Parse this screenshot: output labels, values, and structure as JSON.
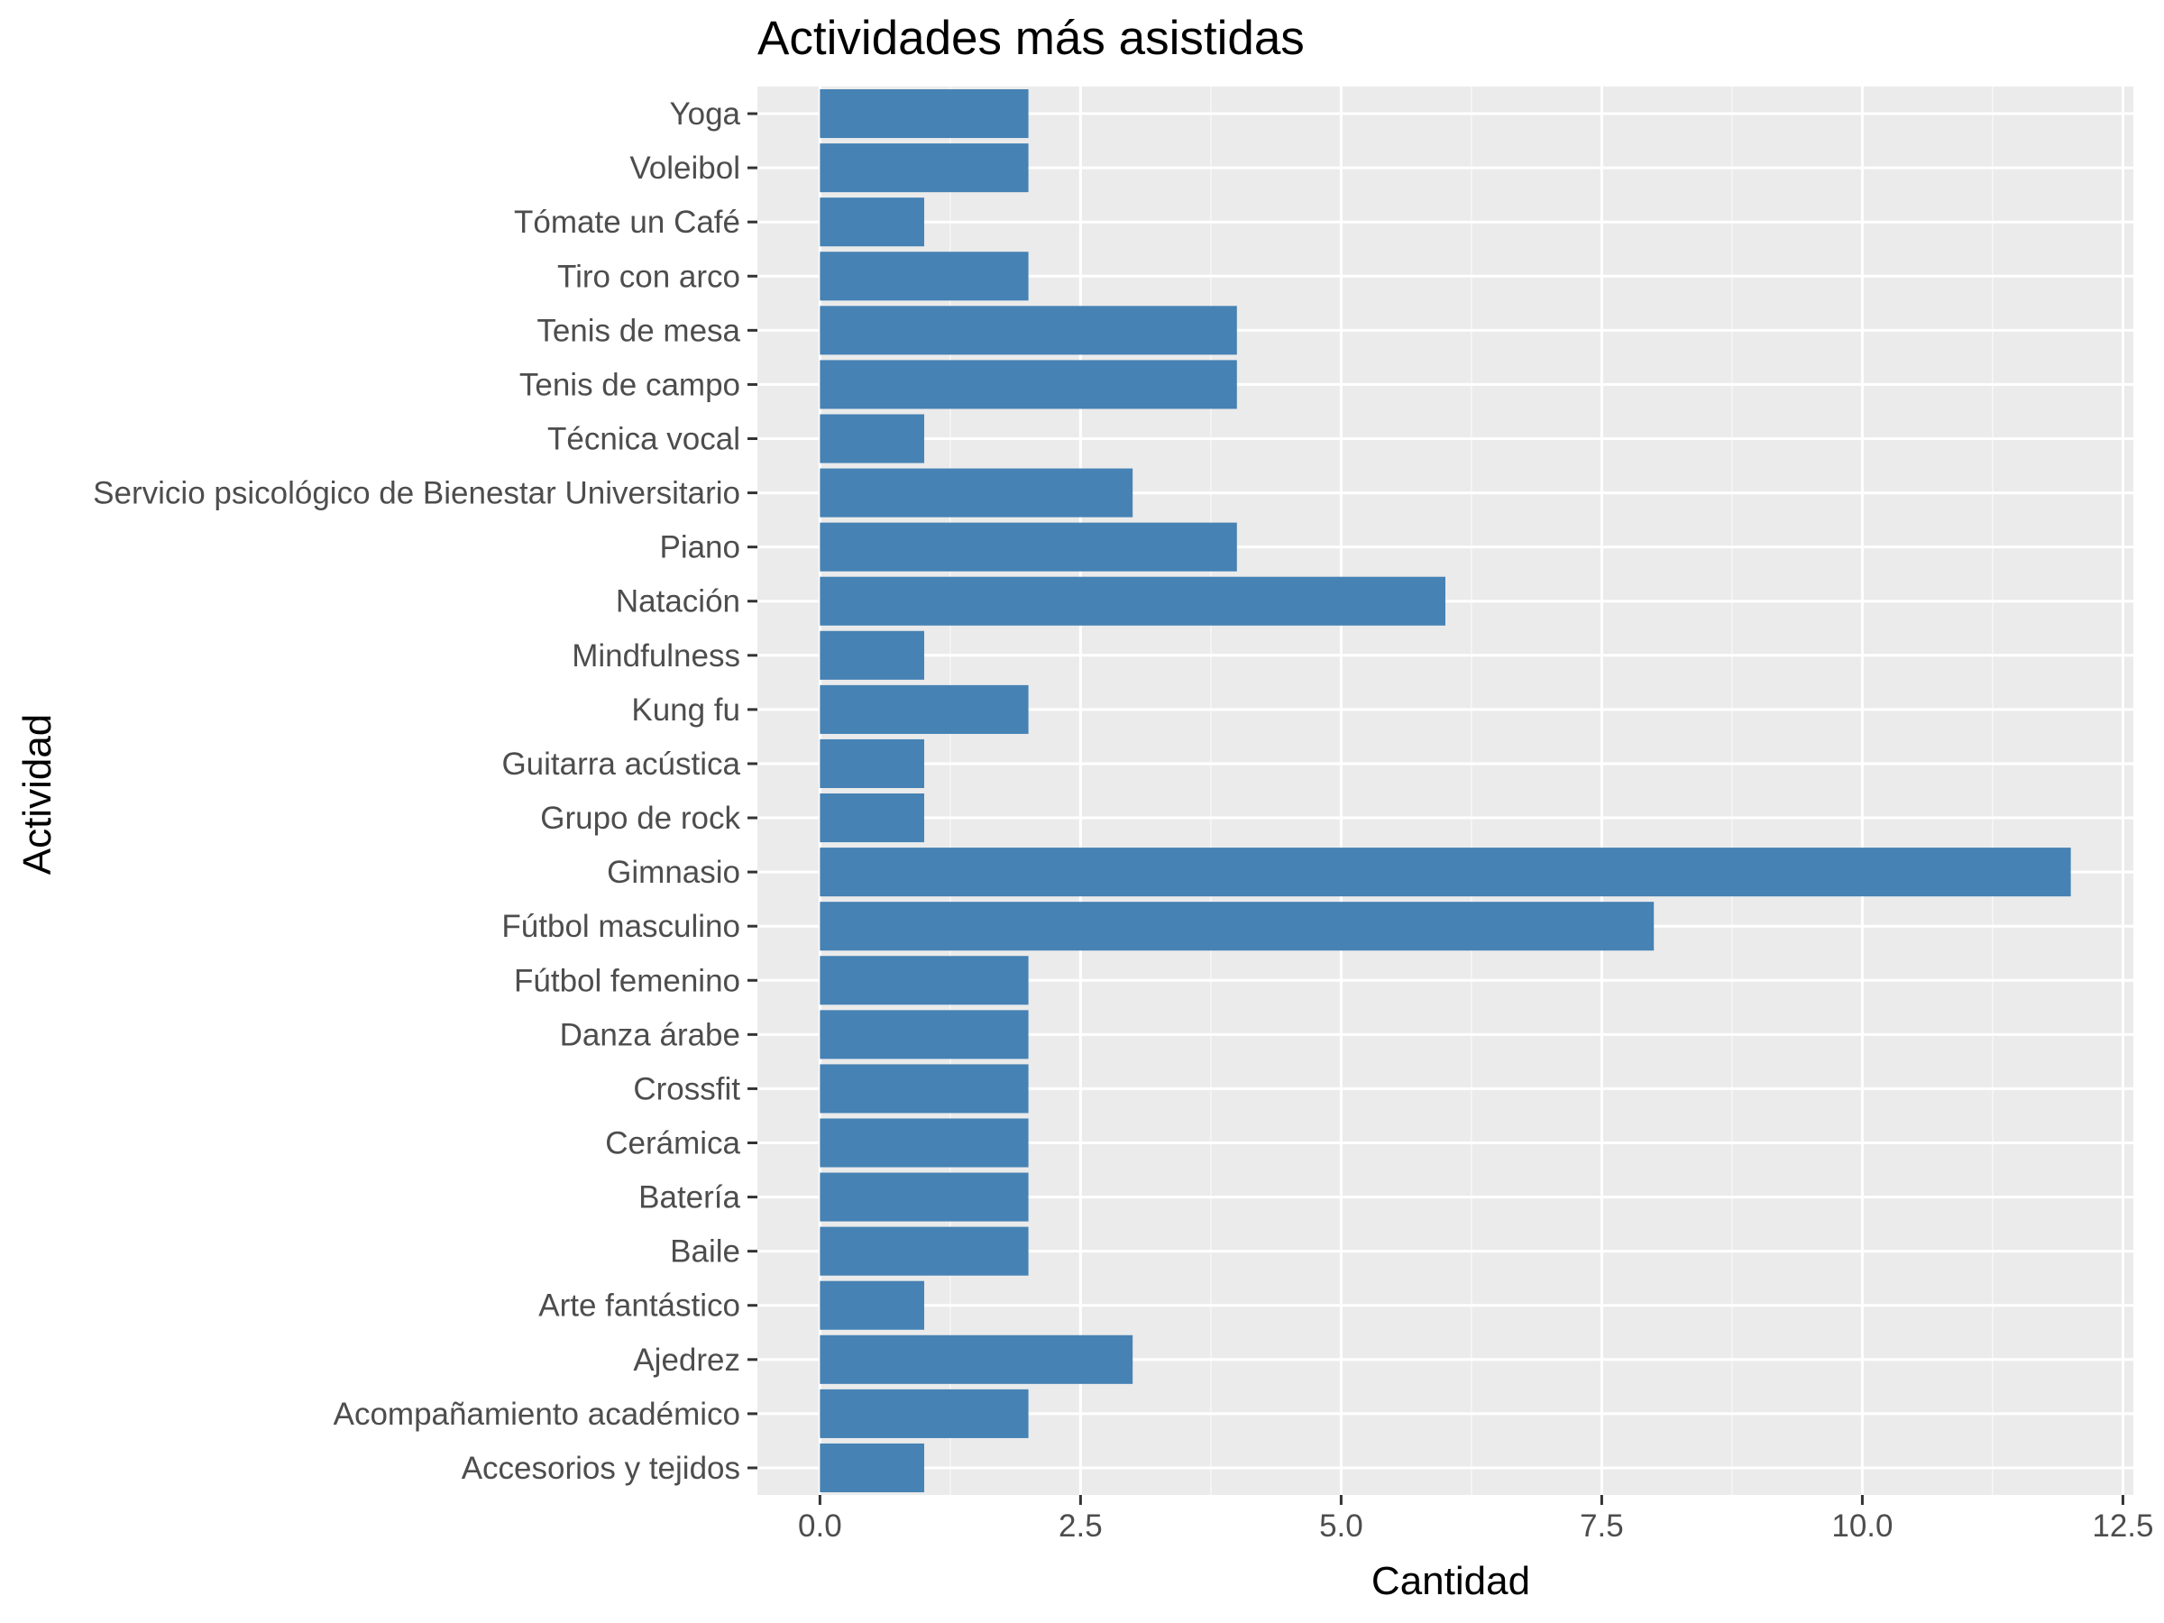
{
  "chart_data": {
    "type": "bar",
    "orientation": "horizontal",
    "title": "Actividades más asistidas",
    "xlabel": "Cantidad",
    "ylabel": "Actividad",
    "xlim": [
      -0.6,
      12.6
    ],
    "x_ticks": [
      0,
      2.5,
      5,
      7.5,
      10,
      12.5
    ],
    "x_tick_labels": [
      "0.0",
      "2.5",
      "5.0",
      "7.5",
      "10.0",
      "12.5"
    ],
    "grid": true,
    "legend": "none",
    "categories": [
      "Accesorios y tejidos",
      "Acompañamiento académico",
      "Ajedrez",
      "Arte fantástico",
      "Baile",
      "Batería",
      "Cerámica",
      "Crossfit",
      "Danza árabe",
      "Fútbol femenino",
      "Fútbol masculino",
      "Gimnasio",
      "Grupo de rock",
      "Guitarra acústica",
      "Kung fu",
      "Mindfulness",
      "Natación",
      "Piano",
      "Servicio psicológico de Bienestar Universitario",
      "Técnica vocal",
      "Tenis de campo",
      "Tenis de mesa",
      "Tiro con arco",
      "Tómate un Café",
      "Voleibol",
      "Yoga"
    ],
    "values": [
      1,
      2,
      3,
      1,
      2,
      2,
      2,
      2,
      2,
      2,
      8,
      12,
      1,
      1,
      2,
      1,
      6,
      4,
      3,
      1,
      4,
      4,
      2,
      1,
      2,
      2
    ]
  },
  "colors": {
    "bar": "#4682b4",
    "panel_background": "#ebebeb",
    "grid_major": "#ffffff",
    "grid_minor": "#f7f7f7",
    "tick_text": "#4d4d4d",
    "tick_mark": "#333333"
  }
}
